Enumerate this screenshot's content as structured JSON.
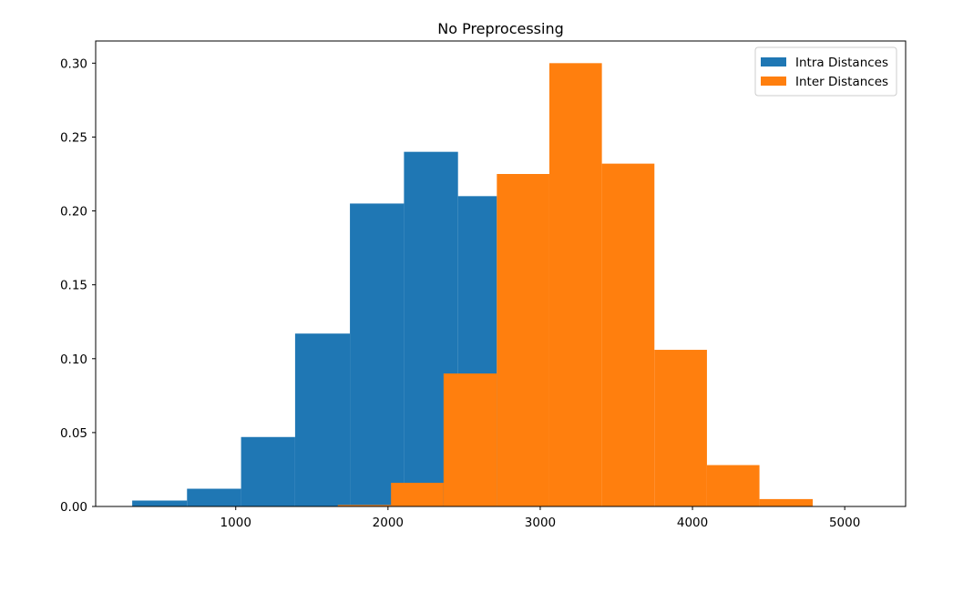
{
  "chart_data": {
    "type": "bar",
    "subtype": "histogram-overlay",
    "title": "No Preprocessing",
    "xlabel": "",
    "ylabel": "",
    "xlim": [
      80,
      5400
    ],
    "ylim": [
      0,
      0.315
    ],
    "xticks": [
      1000,
      2000,
      3000,
      4000,
      5000
    ],
    "xtick_labels": [
      "1000",
      "2000",
      "3000",
      "4000",
      "5000"
    ],
    "yticks": [
      0.0,
      0.05,
      0.1,
      0.15,
      0.2,
      0.25,
      0.3
    ],
    "ytick_labels": [
      "0.00",
      "0.05",
      "0.10",
      "0.15",
      "0.20",
      "0.25",
      "0.30"
    ],
    "grid": false,
    "legend_position": "top-right",
    "series": [
      {
        "name": "Intra Distances",
        "color": "#1f77b4",
        "bins": [
          {
            "x0": 320,
            "x1": 680,
            "value": 0.004
          },
          {
            "x0": 680,
            "x1": 1035,
            "value": 0.012
          },
          {
            "x0": 1035,
            "x1": 1390,
            "value": 0.047
          },
          {
            "x0": 1390,
            "x1": 1750,
            "value": 0.117
          },
          {
            "x0": 1750,
            "x1": 2105,
            "value": 0.205
          },
          {
            "x0": 2105,
            "x1": 2460,
            "value": 0.24
          },
          {
            "x0": 2460,
            "x1": 2715,
            "value": 0.21
          }
        ]
      },
      {
        "name": "Inter Distances",
        "color": "#ff7f0e",
        "bins": [
          {
            "x0": 1670,
            "x1": 2020,
            "value": 0.001
          },
          {
            "x0": 2020,
            "x1": 2365,
            "value": 0.016
          },
          {
            "x0": 2365,
            "x1": 2715,
            "value": 0.09
          },
          {
            "x0": 2715,
            "x1": 3060,
            "value": 0.225
          },
          {
            "x0": 3060,
            "x1": 3405,
            "value": 0.3
          },
          {
            "x0": 3405,
            "x1": 3750,
            "value": 0.232
          },
          {
            "x0": 3750,
            "x1": 4095,
            "value": 0.106
          },
          {
            "x0": 4095,
            "x1": 4440,
            "value": 0.028
          },
          {
            "x0": 4440,
            "x1": 4790,
            "value": 0.005
          }
        ]
      }
    ]
  }
}
